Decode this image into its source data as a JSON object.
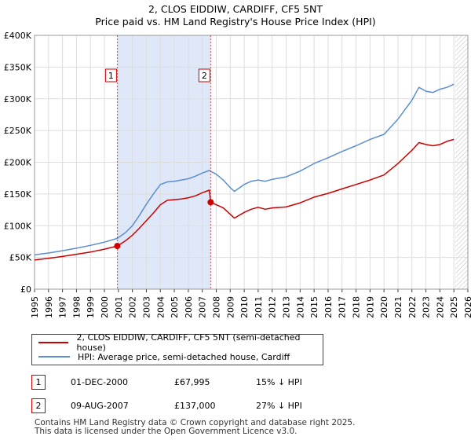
{
  "title": "2, CLOS EIDDIW, CARDIFF, CF5 5NT",
  "subtitle": "Price paid vs. HM Land Registry's House Price Index (HPI)",
  "colors": {
    "price_line": "#cc0000",
    "hpi_line": "#5b8ed0",
    "shade": "#dfe8f8",
    "grid": "#dddddd"
  },
  "legend": [
    {
      "label": "2, CLOS EIDDIW, CARDIFF, CF5 5NT (semi-detached house)"
    },
    {
      "label": "HPI: Average price, semi-detached house, Cardiff"
    }
  ],
  "sales": [
    {
      "num": "1",
      "date": "01-DEC-2000",
      "price": "£67,995",
      "hpi": "15% ↓ HPI"
    },
    {
      "num": "2",
      "date": "09-AUG-2007",
      "price": "£137,000",
      "hpi": "27% ↓ HPI"
    }
  ],
  "footer": [
    "Contains HM Land Registry data © Crown copyright and database right 2025.",
    "This data is licensed under the Open Government Licence v3.0."
  ],
  "chart_data": {
    "type": "line",
    "title": "2, CLOS EIDDIW, CARDIFF, CF5 5NT",
    "subtitle": "Price paid vs. HM Land Registry's House Price Index (HPI)",
    "xlim": [
      1995,
      2026
    ],
    "ylim": [
      0,
      400000
    ],
    "x_ticks": [
      1995,
      1996,
      1997,
      1998,
      1999,
      2000,
      2001,
      2002,
      2003,
      2004,
      2005,
      2006,
      2007,
      2008,
      2009,
      2010,
      2011,
      2012,
      2013,
      2014,
      2015,
      2016,
      2017,
      2018,
      2019,
      2020,
      2021,
      2022,
      2023,
      2024,
      2025,
      2026
    ],
    "y_ticks": [
      {
        "value": 0,
        "label": "£0"
      },
      {
        "value": 50000,
        "label": "£50K"
      },
      {
        "value": 100000,
        "label": "£100K"
      },
      {
        "value": 150000,
        "label": "£150K"
      },
      {
        "value": 200000,
        "label": "£200K"
      },
      {
        "value": 250000,
        "label": "£250K"
      },
      {
        "value": 300000,
        "label": "£300K"
      },
      {
        "value": 350000,
        "label": "£350K"
      },
      {
        "value": 400000,
        "label": "£400K"
      }
    ],
    "grid": true,
    "shaded_region": [
      2000.92,
      2007.6
    ],
    "hatched_future_from": 2025.1,
    "markers": [
      {
        "label": "1",
        "x": 2000.92,
        "y": 67995
      },
      {
        "label": "2",
        "x": 2007.6,
        "y": 137000
      }
    ],
    "series": [
      {
        "name": "2, CLOS EIDDIW, CARDIFF, CF5 5NT (semi-detached house)",
        "color": "#cc0000",
        "x": [
          1995,
          1996,
          1997,
          1998,
          1999,
          2000,
          2000.92,
          2001.5,
          2002,
          2002.5,
          2003,
          2003.5,
          2004,
          2004.5,
          2005,
          2005.5,
          2006,
          2006.5,
          2007,
          2007.5,
          2007.6,
          2008,
          2008.5,
          2009,
          2009.3,
          2010,
          2010.5,
          2011,
          2011.5,
          2012,
          2013,
          2014,
          2015,
          2016,
          2017,
          2018,
          2019,
          2020,
          2021,
          2022,
          2022.5,
          2023,
          2023.5,
          2024,
          2024.5,
          2025
        ],
        "y": [
          46000,
          48500,
          51500,
          55000,
          58500,
          63000,
          67995,
          76000,
          85000,
          96000,
          108000,
          120000,
          133000,
          140000,
          141000,
          142000,
          144000,
          147000,
          152000,
          156000,
          137000,
          133000,
          128000,
          118000,
          112000,
          121000,
          126000,
          129000,
          126000,
          128000,
          129500,
          136000,
          145000,
          151000,
          158000,
          165000,
          172000,
          180000,
          198000,
          219000,
          231000,
          228000,
          226000,
          228000,
          233000,
          236000
        ]
      },
      {
        "name": "HPI: Average price, semi-detached house, Cardiff",
        "color": "#5b8ed0",
        "x": [
          1995,
          1996,
          1997,
          1998,
          1999,
          2000,
          2000.92,
          2001.5,
          2002,
          2002.5,
          2003,
          2003.5,
          2004,
          2004.5,
          2005,
          2005.5,
          2006,
          2006.5,
          2007,
          2007.5,
          2008,
          2008.5,
          2009,
          2009.3,
          2010,
          2010.5,
          2011,
          2011.5,
          2012,
          2013,
          2014,
          2015,
          2016,
          2017,
          2018,
          2019,
          2020,
          2021,
          2022,
          2022.5,
          2023,
          2023.5,
          2024,
          2024.5,
          2025
        ],
        "y": [
          54000,
          57000,
          60500,
          64500,
          69000,
          74000,
          80000,
          89000,
          100000,
          116000,
          134000,
          150000,
          165000,
          169000,
          170000,
          172000,
          174000,
          178000,
          183000,
          187000,
          181000,
          172000,
          160000,
          154000,
          165000,
          170000,
          172000,
          170000,
          173000,
          177000,
          186000,
          198000,
          207000,
          217000,
          226000,
          236000,
          244000,
          268000,
          298000,
          318000,
          312000,
          310000,
          315000,
          318000,
          323000
        ]
      }
    ]
  }
}
